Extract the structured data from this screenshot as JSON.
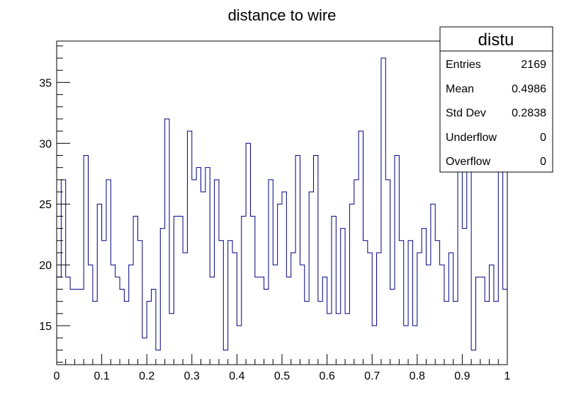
{
  "chart_data": {
    "type": "bar",
    "style": "step-histogram",
    "title": "distance to wire",
    "xlabel": "",
    "ylabel": "",
    "xlim": [
      0,
      1
    ],
    "ylim": [
      11.8,
      38.4
    ],
    "x_ticks": [
      0,
      0.1,
      0.2,
      0.3,
      0.4,
      0.5,
      0.6,
      0.7,
      0.8,
      0.9,
      1
    ],
    "x_tick_labels": [
      "0",
      "0.1",
      "0.2",
      "0.3",
      "0.4",
      "0.5",
      "0.6",
      "0.7",
      "0.8",
      "0.9",
      "1"
    ],
    "y_ticks": [
      15,
      20,
      25,
      30,
      35
    ],
    "y_tick_labels": [
      "15",
      "20",
      "25",
      "30",
      "35"
    ],
    "grid": false,
    "line_color": "#000080",
    "bins": 100,
    "bin_width": 0.01,
    "values": [
      19,
      27,
      19,
      18,
      18,
      18,
      29,
      20,
      17,
      25,
      22,
      27,
      20,
      19,
      18,
      17,
      20,
      24,
      22,
      14,
      17,
      18,
      13,
      23,
      32,
      16,
      24,
      24,
      21,
      31,
      27,
      28,
      26,
      28,
      19,
      27,
      22,
      13,
      22,
      21,
      15,
      24,
      30,
      24,
      19,
      19,
      18,
      27,
      20,
      25,
      26,
      19,
      21,
      29,
      20,
      17,
      26,
      29,
      17,
      19,
      16,
      24,
      16,
      23,
      16,
      25,
      27,
      31,
      22,
      21,
      15,
      21,
      37,
      27,
      18,
      29,
      22,
      15,
      22,
      15,
      21,
      23,
      20,
      25,
      22,
      20,
      17,
      21,
      17,
      30,
      23,
      30,
      13,
      19,
      19,
      17,
      20,
      17,
      31,
      18
    ]
  },
  "stats_box": {
    "name": "distu",
    "rows": [
      {
        "label": "Entries",
        "value": "2169"
      },
      {
        "label": "Mean",
        "value": "0.4986"
      },
      {
        "label": "Std Dev",
        "value": "0.2838"
      },
      {
        "label": "Underflow",
        "value": "0"
      },
      {
        "label": "Overflow",
        "value": "0"
      }
    ]
  }
}
